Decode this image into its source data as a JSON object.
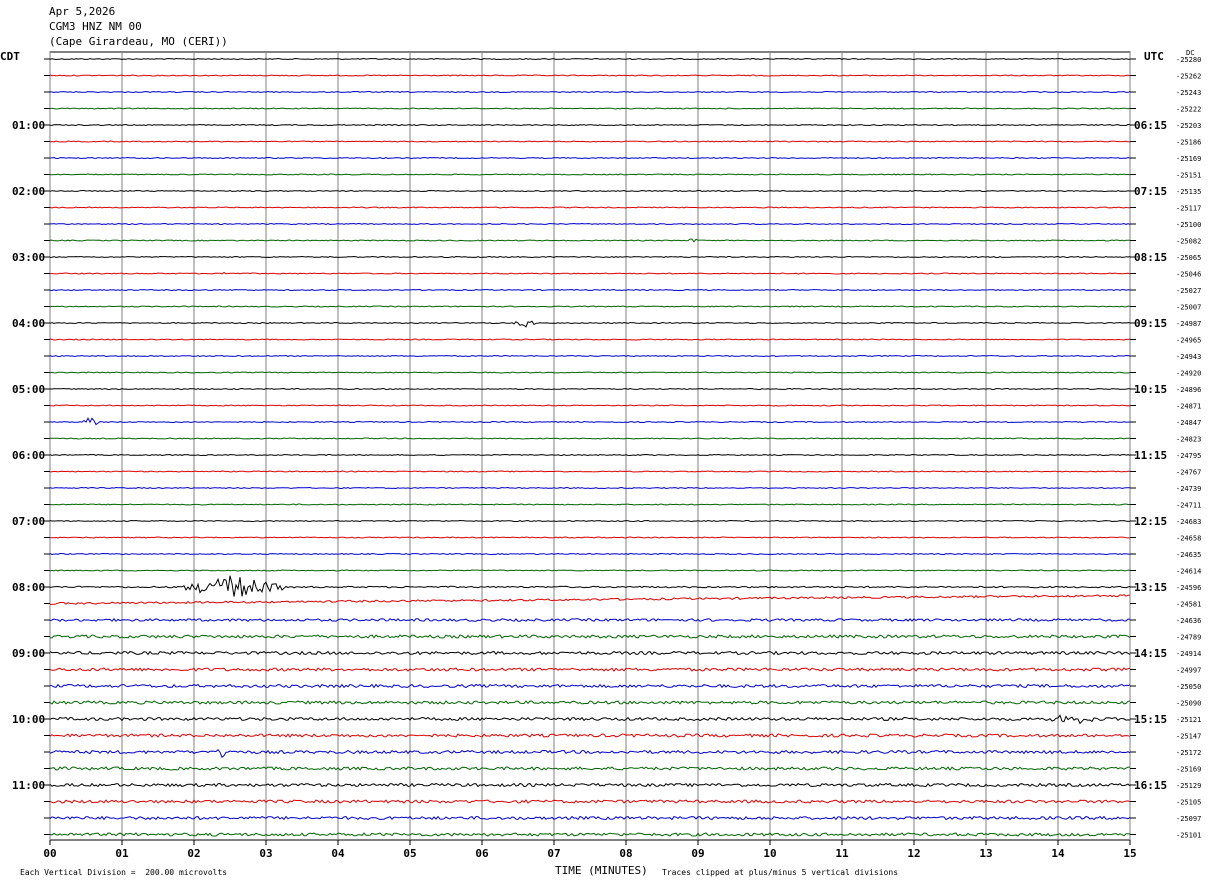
{
  "header": {
    "date": "Apr 5,2026",
    "station": "CGM3 HNZ NM 00",
    "location": "(Cape Girardeau, MO (CERI))"
  },
  "left_timezone": "CDT",
  "right_timezone": "UTC",
  "dc_label": "DC",
  "footer": {
    "scale_note": "Each Vertical Division =  200.00 microvolts",
    "clip_note": "Traces clipped at plus/minus 5 vertical divisions"
  },
  "colors": {
    "trace_cycle": [
      "#000000",
      "#dd0000",
      "#0000cc",
      "#006400"
    ],
    "grid": "#808080"
  },
  "chart_data": {
    "type": "line",
    "title": "",
    "xlabel": "TIME (MINUTES)",
    "ylabel": "",
    "xlim": [
      0,
      15
    ],
    "x_ticks": [
      "00",
      "01",
      "02",
      "03",
      "04",
      "05",
      "06",
      "07",
      "08",
      "09",
      "10",
      "11",
      "12",
      "13",
      "14",
      "15"
    ],
    "grid": true,
    "left_hour_labels": [
      "01:00",
      "02:00",
      "03:00",
      "04:00",
      "05:00",
      "06:00",
      "07:00",
      "08:00",
      "09:00",
      "10:00",
      "11:00"
    ],
    "right_hour_labels": [
      "06:15",
      "07:15",
      "08:15",
      "09:15",
      "10:15",
      "11:15",
      "12:15",
      "13:15",
      "14:15",
      "15:15",
      "16:15"
    ],
    "trace_dc_offsets": [
      -25280,
      -25262,
      -25243,
      -25222,
      -25203,
      -25186,
      -25169,
      -25151,
      -25135,
      -25117,
      -25100,
      -25082,
      -25065,
      -25046,
      -25027,
      -25007,
      -24987,
      -24965,
      -24943,
      -24920,
      -24896,
      -24871,
      -24847,
      -24823,
      -24795,
      -24767,
      -24739,
      -24711,
      -24683,
      -24658,
      -24635,
      -24614,
      -24596,
      -24581,
      -24636,
      -24789,
      -24914,
      -24997,
      -25050,
      -25090,
      -25121,
      -25147,
      -25172,
      -25169,
      -25129,
      -25105,
      -25097,
      -25101
    ],
    "noise_amplitude": [
      1,
      1,
      1,
      1,
      1,
      1,
      1,
      1,
      1,
      1,
      1,
      1,
      1,
      1,
      1,
      1,
      1,
      1,
      1,
      1,
      1,
      1,
      1,
      1,
      1,
      1,
      1,
      1,
      1,
      1,
      1,
      1,
      1.5,
      2,
      2.5,
      3,
      3,
      3,
      3,
      3,
      3,
      3,
      3,
      3,
      3,
      3,
      3,
      3
    ],
    "events": [
      {
        "trace": 32,
        "start_min": 1.7,
        "end_min": 3.4,
        "amplitude": 12
      },
      {
        "trace": 42,
        "start_min": 2.3,
        "end_min": 2.5,
        "amplitude": 10
      },
      {
        "trace": 18,
        "start_min": 1.05,
        "end_min": 1.15,
        "amplitude": 8
      },
      {
        "trace": 22,
        "start_min": 0.45,
        "end_min": 0.7,
        "amplitude": 6
      },
      {
        "trace": 16,
        "start_min": 6.4,
        "end_min": 6.8,
        "amplitude": 4
      },
      {
        "trace": 11,
        "start_min": 8.85,
        "end_min": 9.0,
        "amplitude": 5
      },
      {
        "trace": 40,
        "start_min": 13.8,
        "end_min": 14.6,
        "amplitude": 5
      },
      {
        "trace": 13,
        "start_min": 2.35,
        "end_min": 2.45,
        "amplitude": 4
      }
    ],
    "trend": {
      "trace": 33,
      "start_offset": 20,
      "end_offset": -8,
      "onset_min": 0
    }
  }
}
